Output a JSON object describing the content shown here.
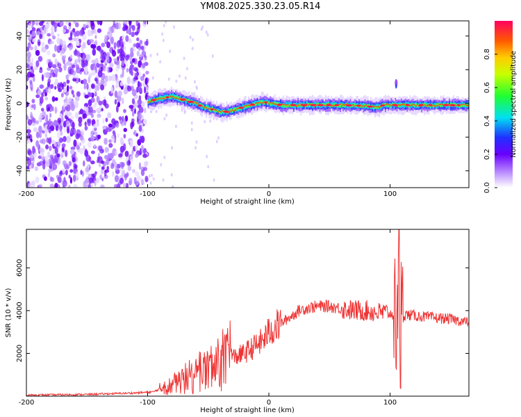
{
  "page_title": "YM08.2025.330.23.05.R14",
  "chart_data": [
    {
      "type": "heatmap",
      "title": "YM08.2025.330.23.05.R14",
      "xlabel": "Height of straight line (km)",
      "ylabel": "Frequency (Hz)",
      "xlim": [
        -200,
        165
      ],
      "ylim": [
        -50,
        49
      ],
      "xticks": [
        -200,
        -100,
        0,
        100
      ],
      "yticks": [
        -40,
        -20,
        0,
        20,
        40
      ],
      "noise_region_x": [
        -200,
        -100
      ],
      "ridge": {
        "x": [
          -100,
          -95,
          -90,
          -85,
          -80,
          -75,
          -70,
          -65,
          -60,
          -55,
          -50,
          -45,
          -40,
          -35,
          -30,
          -25,
          -20,
          -15,
          -10,
          -5,
          0,
          10,
          20,
          40,
          60,
          80,
          85,
          90,
          95,
          100,
          105,
          110,
          120,
          140,
          165
        ],
        "y": [
          1,
          2,
          3,
          3.5,
          4,
          3,
          2,
          1,
          0,
          -2,
          -3,
          -4,
          -5,
          -5,
          -4,
          -3,
          -2,
          -1,
          0,
          1,
          0,
          -1,
          -1,
          -1,
          -1,
          -1.5,
          -2,
          -2,
          -1,
          -1,
          -1,
          -1,
          -1,
          -1,
          -1
        ]
      },
      "colorbar": {
        "label": "Normalized spectral amplitude",
        "range": [
          0,
          1
        ],
        "ticks": [
          "0.0",
          "0.2",
          "0.4",
          "0.6",
          "0.8"
        ]
      }
    },
    {
      "type": "line",
      "xlabel": "Height of straight line (km)",
      "ylabel": "SNR (10 * v/v)",
      "xlim": [
        -200,
        165
      ],
      "ylim": [
        0,
        7800
      ],
      "xticks": [
        -200,
        -100,
        0,
        100
      ],
      "yticks": [
        2000,
        4000,
        6000
      ],
      "series": [
        {
          "name": "SNR",
          "color": "#ee3333",
          "x": [
            -200,
            -150,
            -110,
            -95,
            -90,
            -80,
            -70,
            -60,
            -50,
            -40,
            -30,
            -20,
            -10,
            -5,
            0,
            10,
            20,
            25,
            30,
            40,
            50,
            60,
            70,
            80,
            90,
            95,
            100,
            105,
            107,
            108,
            110,
            115,
            130,
            150,
            165
          ],
          "y": [
            50,
            80,
            150,
            200,
            350,
            500,
            700,
            900,
            1200,
            1500,
            1800,
            2000,
            2400,
            2600,
            3000,
            3400,
            3800,
            4000,
            4100,
            4200,
            4200,
            4100,
            4000,
            4000,
            3900,
            3900,
            3850,
            3800,
            3900,
            3900,
            3800,
            3800,
            3700,
            3600,
            3450
          ]
        }
      ]
    }
  ]
}
